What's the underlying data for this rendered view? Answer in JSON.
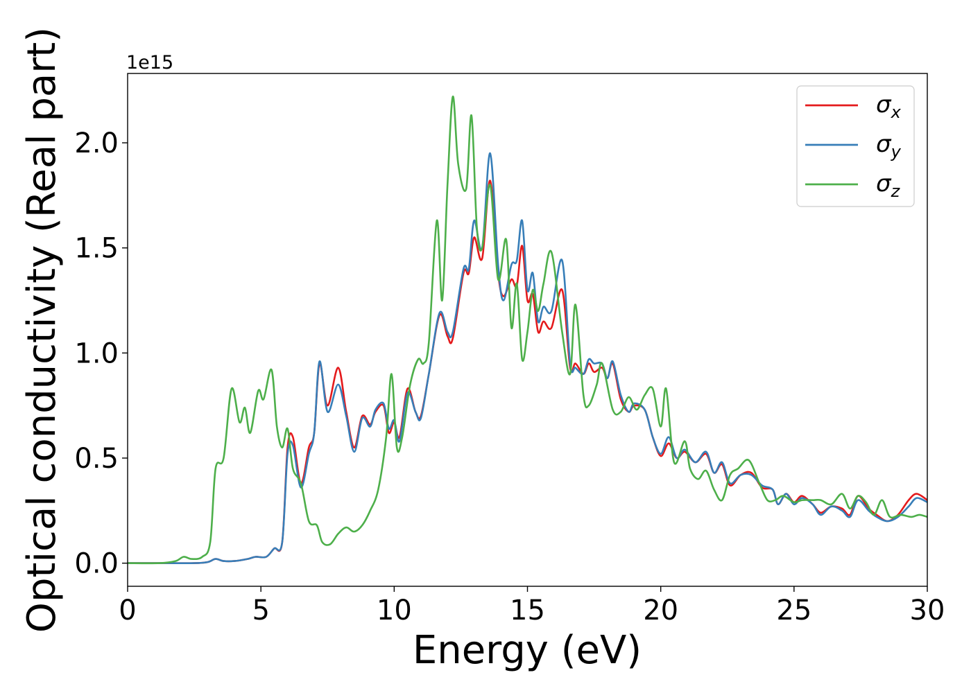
{
  "chart_data": {
    "type": "line",
    "xlabel": "Energy (eV)",
    "ylabel": "Optical conductivity (Real part)",
    "y_offset_label": "1e15",
    "xlim": [
      0,
      30
    ],
    "ylim": [
      -0.11,
      2.33
    ],
    "x_ticks": [
      0,
      5,
      10,
      15,
      20,
      25,
      30
    ],
    "x_tick_labels": [
      "0",
      "5",
      "10",
      "15",
      "20",
      "25",
      "30"
    ],
    "y_ticks": [
      0.0,
      0.5,
      1.0,
      1.5,
      2.0
    ],
    "y_tick_labels": [
      "0.0",
      "0.5",
      "1.0",
      "1.5",
      "2.0"
    ],
    "grid": false,
    "legend_position": "top-right",
    "series": [
      {
        "name": "σx",
        "symbol": "σ",
        "subscript": "x",
        "color": "#e41a1c",
        "points": [
          [
            0,
            0
          ],
          [
            1.5,
            0.0
          ],
          [
            2.5,
            0.0
          ],
          [
            3.0,
            0.005
          ],
          [
            3.3,
            0.02
          ],
          [
            3.6,
            0.01
          ],
          [
            4.0,
            0.01
          ],
          [
            4.5,
            0.02
          ],
          [
            4.8,
            0.03
          ],
          [
            5.2,
            0.03
          ],
          [
            5.5,
            0.07
          ],
          [
            5.8,
            0.1
          ],
          [
            6.0,
            0.55
          ],
          [
            6.2,
            0.6
          ],
          [
            6.5,
            0.38
          ],
          [
            6.8,
            0.55
          ],
          [
            7.0,
            0.62
          ],
          [
            7.2,
            0.95
          ],
          [
            7.5,
            0.75
          ],
          [
            7.9,
            0.93
          ],
          [
            8.2,
            0.72
          ],
          [
            8.5,
            0.55
          ],
          [
            8.8,
            0.7
          ],
          [
            9.1,
            0.66
          ],
          [
            9.3,
            0.72
          ],
          [
            9.6,
            0.75
          ],
          [
            9.8,
            0.62
          ],
          [
            10.0,
            0.67
          ],
          [
            10.2,
            0.6
          ],
          [
            10.5,
            0.83
          ],
          [
            10.8,
            0.72
          ],
          [
            11.0,
            0.7
          ],
          [
            11.3,
            0.9
          ],
          [
            11.7,
            1.18
          ],
          [
            12.0,
            1.08
          ],
          [
            12.2,
            1.07
          ],
          [
            12.6,
            1.38
          ],
          [
            12.8,
            1.38
          ],
          [
            13.0,
            1.55
          ],
          [
            13.3,
            1.45
          ],
          [
            13.6,
            1.82
          ],
          [
            13.9,
            1.38
          ],
          [
            14.1,
            1.27
          ],
          [
            14.4,
            1.35
          ],
          [
            14.6,
            1.32
          ],
          [
            14.8,
            1.51
          ],
          [
            15.0,
            1.25
          ],
          [
            15.2,
            1.28
          ],
          [
            15.4,
            1.1
          ],
          [
            15.6,
            1.15
          ],
          [
            15.9,
            1.12
          ],
          [
            16.3,
            1.3
          ],
          [
            16.6,
            0.93
          ],
          [
            16.8,
            0.95
          ],
          [
            17.1,
            0.9
          ],
          [
            17.3,
            0.95
          ],
          [
            17.5,
            0.91
          ],
          [
            17.8,
            0.93
          ],
          [
            18.0,
            0.88
          ],
          [
            18.2,
            0.95
          ],
          [
            18.5,
            0.78
          ],
          [
            18.8,
            0.72
          ],
          [
            19.0,
            0.75
          ],
          [
            19.4,
            0.73
          ],
          [
            19.7,
            0.6
          ],
          [
            20.0,
            0.51
          ],
          [
            20.3,
            0.57
          ],
          [
            20.6,
            0.5
          ],
          [
            20.9,
            0.53
          ],
          [
            21.3,
            0.48
          ],
          [
            21.7,
            0.52
          ],
          [
            22.0,
            0.43
          ],
          [
            22.3,
            0.47
          ],
          [
            22.6,
            0.37
          ],
          [
            23.0,
            0.42
          ],
          [
            23.4,
            0.43
          ],
          [
            23.8,
            0.36
          ],
          [
            24.2,
            0.35
          ],
          [
            24.4,
            0.28
          ],
          [
            24.7,
            0.33
          ],
          [
            25.0,
            0.29
          ],
          [
            25.3,
            0.32
          ],
          [
            25.7,
            0.28
          ],
          [
            26.0,
            0.24
          ],
          [
            26.4,
            0.27
          ],
          [
            26.8,
            0.26
          ],
          [
            27.1,
            0.23
          ],
          [
            27.4,
            0.32
          ],
          [
            27.8,
            0.26
          ],
          [
            28.1,
            0.23
          ],
          [
            28.5,
            0.2
          ],
          [
            28.9,
            0.23
          ],
          [
            29.3,
            0.3
          ],
          [
            29.6,
            0.33
          ],
          [
            30.0,
            0.3
          ]
        ]
      },
      {
        "name": "σy",
        "symbol": "σ",
        "subscript": "y",
        "color": "#377eb8",
        "points": [
          [
            0,
            0
          ],
          [
            1.5,
            0.0
          ],
          [
            2.5,
            0.0
          ],
          [
            3.0,
            0.005
          ],
          [
            3.3,
            0.02
          ],
          [
            3.6,
            0.01
          ],
          [
            4.0,
            0.01
          ],
          [
            4.5,
            0.02
          ],
          [
            4.8,
            0.03
          ],
          [
            5.2,
            0.03
          ],
          [
            5.5,
            0.07
          ],
          [
            5.8,
            0.1
          ],
          [
            6.0,
            0.52
          ],
          [
            6.2,
            0.56
          ],
          [
            6.5,
            0.36
          ],
          [
            6.8,
            0.52
          ],
          [
            7.0,
            0.62
          ],
          [
            7.2,
            0.96
          ],
          [
            7.5,
            0.72
          ],
          [
            7.9,
            0.85
          ],
          [
            8.2,
            0.7
          ],
          [
            8.5,
            0.53
          ],
          [
            8.8,
            0.69
          ],
          [
            9.1,
            0.65
          ],
          [
            9.3,
            0.73
          ],
          [
            9.6,
            0.76
          ],
          [
            9.8,
            0.64
          ],
          [
            10.0,
            0.68
          ],
          [
            10.2,
            0.58
          ],
          [
            10.5,
            0.81
          ],
          [
            10.8,
            0.72
          ],
          [
            11.0,
            0.69
          ],
          [
            11.3,
            0.9
          ],
          [
            11.7,
            1.19
          ],
          [
            12.0,
            1.1
          ],
          [
            12.2,
            1.1
          ],
          [
            12.6,
            1.4
          ],
          [
            12.8,
            1.4
          ],
          [
            13.0,
            1.63
          ],
          [
            13.3,
            1.5
          ],
          [
            13.6,
            1.95
          ],
          [
            13.9,
            1.42
          ],
          [
            14.1,
            1.25
          ],
          [
            14.4,
            1.42
          ],
          [
            14.6,
            1.44
          ],
          [
            14.8,
            1.63
          ],
          [
            15.0,
            1.3
          ],
          [
            15.2,
            1.38
          ],
          [
            15.4,
            1.15
          ],
          [
            15.6,
            1.22
          ],
          [
            15.9,
            1.2
          ],
          [
            16.3,
            1.44
          ],
          [
            16.6,
            0.95
          ],
          [
            16.8,
            0.93
          ],
          [
            17.1,
            0.9
          ],
          [
            17.3,
            0.97
          ],
          [
            17.5,
            0.95
          ],
          [
            17.8,
            0.95
          ],
          [
            18.0,
            0.88
          ],
          [
            18.2,
            0.96
          ],
          [
            18.5,
            0.8
          ],
          [
            18.8,
            0.72
          ],
          [
            19.0,
            0.76
          ],
          [
            19.4,
            0.73
          ],
          [
            19.7,
            0.6
          ],
          [
            20.0,
            0.52
          ],
          [
            20.3,
            0.6
          ],
          [
            20.6,
            0.5
          ],
          [
            20.9,
            0.54
          ],
          [
            21.3,
            0.48
          ],
          [
            21.7,
            0.53
          ],
          [
            22.0,
            0.43
          ],
          [
            22.3,
            0.48
          ],
          [
            22.6,
            0.38
          ],
          [
            23.0,
            0.42
          ],
          [
            23.4,
            0.42
          ],
          [
            23.8,
            0.37
          ],
          [
            24.2,
            0.35
          ],
          [
            24.4,
            0.28
          ],
          [
            24.7,
            0.33
          ],
          [
            25.0,
            0.28
          ],
          [
            25.3,
            0.31
          ],
          [
            25.7,
            0.28
          ],
          [
            26.0,
            0.23
          ],
          [
            26.4,
            0.27
          ],
          [
            26.8,
            0.25
          ],
          [
            27.1,
            0.22
          ],
          [
            27.4,
            0.3
          ],
          [
            27.8,
            0.25
          ],
          [
            28.1,
            0.22
          ],
          [
            28.5,
            0.2
          ],
          [
            28.9,
            0.22
          ],
          [
            29.3,
            0.27
          ],
          [
            29.6,
            0.31
          ],
          [
            30.0,
            0.29
          ]
        ]
      },
      {
        "name": "σz",
        "symbol": "σ",
        "subscript": "z",
        "color": "#4daf4a",
        "points": [
          [
            0,
            0
          ],
          [
            1.2,
            0.0
          ],
          [
            1.8,
            0.01
          ],
          [
            2.1,
            0.03
          ],
          [
            2.4,
            0.02
          ],
          [
            2.8,
            0.03
          ],
          [
            3.1,
            0.1
          ],
          [
            3.3,
            0.45
          ],
          [
            3.6,
            0.5
          ],
          [
            3.9,
            0.83
          ],
          [
            4.2,
            0.67
          ],
          [
            4.4,
            0.74
          ],
          [
            4.6,
            0.62
          ],
          [
            4.9,
            0.82
          ],
          [
            5.1,
            0.78
          ],
          [
            5.4,
            0.92
          ],
          [
            5.6,
            0.65
          ],
          [
            5.8,
            0.55
          ],
          [
            6.0,
            0.64
          ],
          [
            6.2,
            0.45
          ],
          [
            6.5,
            0.38
          ],
          [
            6.8,
            0.2
          ],
          [
            7.1,
            0.18
          ],
          [
            7.3,
            0.1
          ],
          [
            7.6,
            0.09
          ],
          [
            7.9,
            0.14
          ],
          [
            8.2,
            0.17
          ],
          [
            8.5,
            0.15
          ],
          [
            8.8,
            0.18
          ],
          [
            9.1,
            0.25
          ],
          [
            9.4,
            0.35
          ],
          [
            9.7,
            0.6
          ],
          [
            9.9,
            0.9
          ],
          [
            10.1,
            0.55
          ],
          [
            10.3,
            0.6
          ],
          [
            10.6,
            0.85
          ],
          [
            10.9,
            0.97
          ],
          [
            11.1,
            0.95
          ],
          [
            11.3,
            1.05
          ],
          [
            11.6,
            1.63
          ],
          [
            11.8,
            1.25
          ],
          [
            12.0,
            1.8
          ],
          [
            12.2,
            2.22
          ],
          [
            12.4,
            1.9
          ],
          [
            12.7,
            1.78
          ],
          [
            12.9,
            2.13
          ],
          [
            13.1,
            1.6
          ],
          [
            13.3,
            1.5
          ],
          [
            13.6,
            1.8
          ],
          [
            13.9,
            1.35
          ],
          [
            14.2,
            1.54
          ],
          [
            14.4,
            1.12
          ],
          [
            14.6,
            1.33
          ],
          [
            14.8,
            0.97
          ],
          [
            15.0,
            1.1
          ],
          [
            15.2,
            1.3
          ],
          [
            15.4,
            1.2
          ],
          [
            15.6,
            1.33
          ],
          [
            15.9,
            1.48
          ],
          [
            16.3,
            1.1
          ],
          [
            16.6,
            0.9
          ],
          [
            16.8,
            1.23
          ],
          [
            17.1,
            0.8
          ],
          [
            17.3,
            0.75
          ],
          [
            17.6,
            0.85
          ],
          [
            17.8,
            0.95
          ],
          [
            18.2,
            0.73
          ],
          [
            18.5,
            0.72
          ],
          [
            18.8,
            0.79
          ],
          [
            19.1,
            0.73
          ],
          [
            19.4,
            0.8
          ],
          [
            19.7,
            0.83
          ],
          [
            20.0,
            0.65
          ],
          [
            20.2,
            0.83
          ],
          [
            20.5,
            0.48
          ],
          [
            20.9,
            0.58
          ],
          [
            21.1,
            0.45
          ],
          [
            21.4,
            0.4
          ],
          [
            21.7,
            0.44
          ],
          [
            22.0,
            0.35
          ],
          [
            22.3,
            0.3
          ],
          [
            22.6,
            0.42
          ],
          [
            22.9,
            0.45
          ],
          [
            23.3,
            0.49
          ],
          [
            23.7,
            0.38
          ],
          [
            24.0,
            0.3
          ],
          [
            24.3,
            0.3
          ],
          [
            24.6,
            0.32
          ],
          [
            25.0,
            0.29
          ],
          [
            25.3,
            0.3
          ],
          [
            25.7,
            0.3
          ],
          [
            26.0,
            0.3
          ],
          [
            26.4,
            0.28
          ],
          [
            26.8,
            0.33
          ],
          [
            27.1,
            0.26
          ],
          [
            27.4,
            0.32
          ],
          [
            27.7,
            0.29
          ],
          [
            28.0,
            0.23
          ],
          [
            28.3,
            0.3
          ],
          [
            28.6,
            0.22
          ],
          [
            29.0,
            0.23
          ],
          [
            29.4,
            0.22
          ],
          [
            29.7,
            0.23
          ],
          [
            30.0,
            0.22
          ]
        ]
      }
    ]
  }
}
